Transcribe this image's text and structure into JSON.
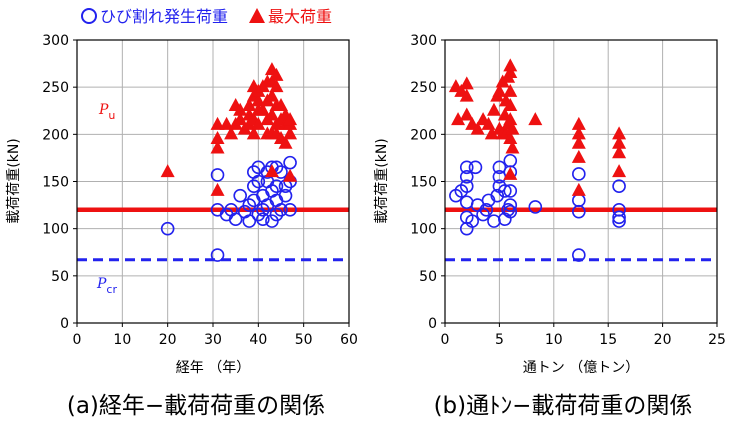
{
  "legend": {
    "crack_label": "ひび割れ発生荷重",
    "max_label": "最大荷重",
    "crack_color": "#2222ee",
    "max_color": "#ee1111"
  },
  "captions": {
    "a": "(a)経年−載荷荷重の関係",
    "b": "(b)通ﾄﾝ−載荷荷重の関係"
  },
  "chart_data": [
    {
      "type": "scatter",
      "xlabel": "経年 （年）",
      "ylabel": "載荷荷重(kN)",
      "xlim": [
        0,
        60
      ],
      "ylim": [
        0,
        300
      ],
      "xticks": [
        0,
        10,
        20,
        30,
        40,
        50,
        60
      ],
      "yticks": [
        0,
        50,
        100,
        150,
        200,
        250,
        300
      ],
      "grid": true,
      "reference_lines": [
        {
          "name": "P",
          "subscript": "u",
          "value": 120,
          "color": "#ee1111",
          "style": "solid"
        },
        {
          "name": "P",
          "subscript": "cr",
          "value": 67,
          "color": "#2222ee",
          "style": "dashed"
        }
      ],
      "series": [
        {
          "name": "ひび割れ発生荷重",
          "marker": "circle",
          "points": [
            [
              20,
              100
            ],
            [
              31,
              72
            ],
            [
              31,
              157
            ],
            [
              31,
              120
            ],
            [
              33,
              115
            ],
            [
              34,
              120
            ],
            [
              35,
              110
            ],
            [
              36,
              135
            ],
            [
              37,
              118
            ],
            [
              38,
              108
            ],
            [
              38,
              125
            ],
            [
              39,
              145
            ],
            [
              39,
              160
            ],
            [
              39,
              130
            ],
            [
              40,
              115
            ],
            [
              40,
              150
            ],
            [
              40,
              165
            ],
            [
              41,
              120
            ],
            [
              41,
              135
            ],
            [
              41,
              110
            ],
            [
              42,
              125
            ],
            [
              42,
              150
            ],
            [
              42,
              160
            ],
            [
              43,
              108
            ],
            [
              43,
              140
            ],
            [
              43,
              165
            ],
            [
              44,
              115
            ],
            [
              44,
              145
            ],
            [
              44,
              130
            ],
            [
              44,
              165
            ],
            [
              45,
              160
            ],
            [
              45,
              120
            ],
            [
              46,
              135
            ],
            [
              46,
              145
            ],
            [
              47,
              150
            ],
            [
              47,
              170
            ],
            [
              47,
              120
            ]
          ]
        },
        {
          "name": "最大荷重",
          "marker": "triangle",
          "points": [
            [
              20,
              160
            ],
            [
              31,
              140
            ],
            [
              31,
              185
            ],
            [
              31,
              195
            ],
            [
              31,
              210
            ],
            [
              33,
              210
            ],
            [
              34,
              200
            ],
            [
              35,
              210
            ],
            [
              35,
              230
            ],
            [
              36,
              225
            ],
            [
              36,
              215
            ],
            [
              37,
              205
            ],
            [
              38,
              210
            ],
            [
              38,
              220
            ],
            [
              38,
              230
            ],
            [
              39,
              200
            ],
            [
              39,
              215
            ],
            [
              39,
              240
            ],
            [
              39,
              250
            ],
            [
              40,
              210
            ],
            [
              40,
              225
            ],
            [
              40,
              235
            ],
            [
              40,
              245
            ],
            [
              41,
              225
            ],
            [
              41,
              250
            ],
            [
              42,
              200
            ],
            [
              42,
              215
            ],
            [
              42,
              235
            ],
            [
              42,
              255
            ],
            [
              43,
              160
            ],
            [
              43,
              200
            ],
            [
              43,
              220
            ],
            [
              43,
              240
            ],
            [
              43,
              255
            ],
            [
              43,
              268
            ],
            [
              44,
              200
            ],
            [
              44,
              210
            ],
            [
              44,
              230
            ],
            [
              44,
              250
            ],
            [
              44,
              262
            ],
            [
              45,
              195
            ],
            [
              45,
              215
            ],
            [
              45,
              230
            ],
            [
              46,
              190
            ],
            [
              46,
              210
            ],
            [
              46,
              220
            ],
            [
              47,
              155
            ],
            [
              47,
              200
            ],
            [
              47,
              210
            ],
            [
              47,
              215
            ]
          ]
        }
      ]
    },
    {
      "type": "scatter",
      "xlabel": "通トン （億トン）",
      "ylabel": "載荷荷重(kN)",
      "xlim": [
        0,
        25
      ],
      "ylim": [
        0,
        300
      ],
      "xticks": [
        0,
        5,
        10,
        15,
        20,
        25
      ],
      "yticks": [
        0,
        50,
        100,
        150,
        200,
        250,
        300
      ],
      "grid": true,
      "reference_lines": [
        {
          "value": 120,
          "color": "#ee1111",
          "style": "solid"
        },
        {
          "value": 67,
          "color": "#2222ee",
          "style": "dashed"
        }
      ],
      "series": [
        {
          "name": "ひび割れ発生荷重",
          "marker": "circle",
          "points": [
            [
              1,
              135
            ],
            [
              1.5,
              140
            ],
            [
              2,
              165
            ],
            [
              2,
              155
            ],
            [
              2,
              145
            ],
            [
              2,
              128
            ],
            [
              2,
              112
            ],
            [
              2,
              100
            ],
            [
              2.5,
              108
            ],
            [
              2.8,
              165
            ],
            [
              3,
              125
            ],
            [
              3.5,
              115
            ],
            [
              3.8,
              120
            ],
            [
              4,
              130
            ],
            [
              4.5,
              108
            ],
            [
              4.8,
              135
            ],
            [
              5,
              145
            ],
            [
              5,
              155
            ],
            [
              5,
              165
            ],
            [
              5.5,
              110
            ],
            [
              5.5,
              140
            ],
            [
              5.8,
              120
            ],
            [
              6,
              160
            ],
            [
              6,
              172
            ],
            [
              6,
              140
            ],
            [
              6,
              125
            ],
            [
              6,
              118
            ],
            [
              8.3,
              123
            ],
            [
              12.3,
              158
            ],
            [
              12.3,
              130
            ],
            [
              12.3,
              118
            ],
            [
              12.3,
              72
            ],
            [
              16,
              145
            ],
            [
              16,
              120
            ],
            [
              16,
              112
            ],
            [
              16,
              108
            ]
          ]
        },
        {
          "name": "最大荷重",
          "marker": "triangle",
          "points": [
            [
              1,
              250
            ],
            [
              1.2,
              215
            ],
            [
              1.5,
              245
            ],
            [
              2,
              220
            ],
            [
              2,
              240
            ],
            [
              2,
              253
            ],
            [
              2.5,
              210
            ],
            [
              3,
              205
            ],
            [
              3.5,
              215
            ],
            [
              4,
              210
            ],
            [
              4.3,
              200
            ],
            [
              4.5,
              225
            ],
            [
              4.8,
              240
            ],
            [
              5,
              205
            ],
            [
              5,
              245
            ],
            [
              5.3,
              200
            ],
            [
              5.3,
              255
            ],
            [
              5.5,
              220
            ],
            [
              5.6,
              200
            ],
            [
              5.6,
              235
            ],
            [
              5.8,
              210
            ],
            [
              5.8,
              260
            ],
            [
              6,
              157
            ],
            [
              6,
              195
            ],
            [
              6,
              215
            ],
            [
              6,
              230
            ],
            [
              6,
              245
            ],
            [
              6,
              265
            ],
            [
              6,
              272
            ],
            [
              6.2,
              185
            ],
            [
              6.2,
              205
            ],
            [
              8.3,
              215
            ],
            [
              12.3,
              140
            ],
            [
              12.3,
              175
            ],
            [
              12.3,
              190
            ],
            [
              12.3,
              200
            ],
            [
              12.3,
              210
            ],
            [
              16,
              160
            ],
            [
              16,
              180
            ],
            [
              16,
              190
            ],
            [
              16,
              200
            ]
          ]
        }
      ]
    }
  ]
}
